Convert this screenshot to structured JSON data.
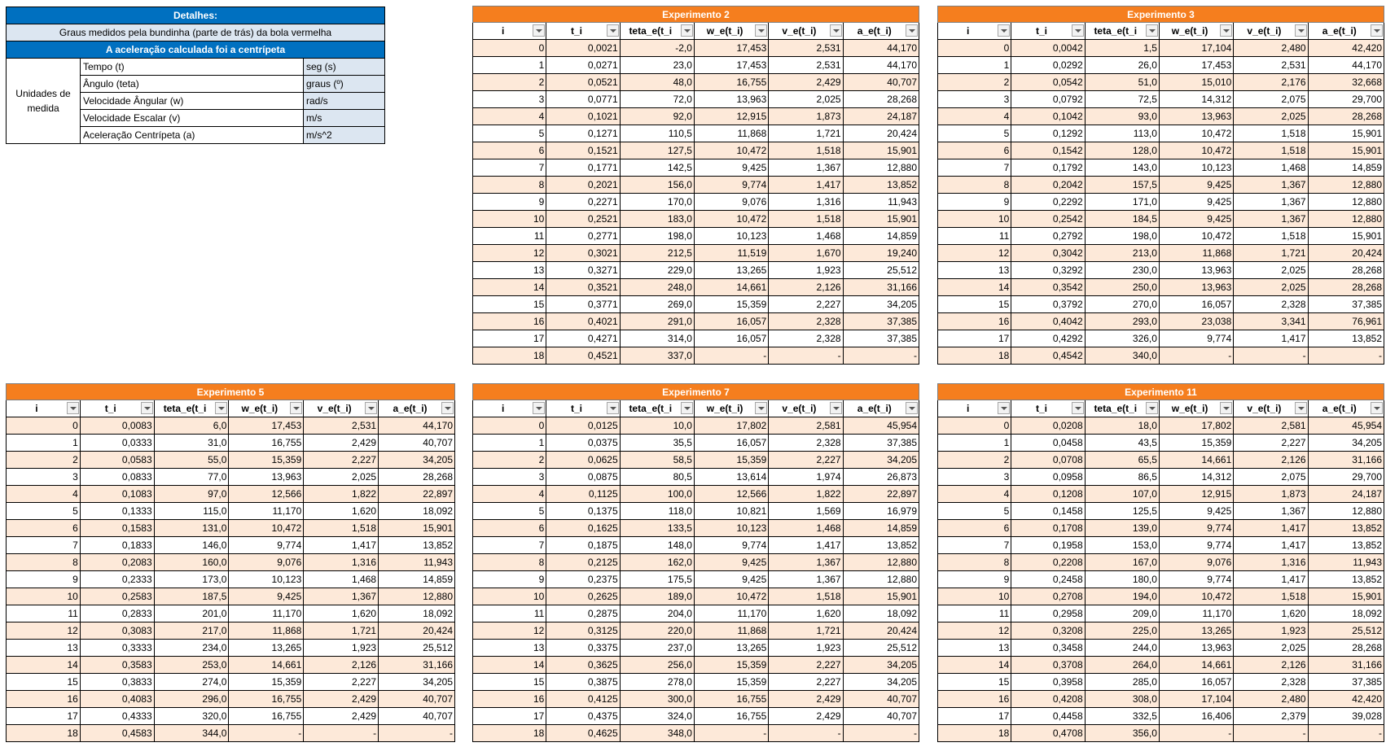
{
  "details": {
    "title": "Detalhes:",
    "note": "Graus medidos pela bundinha (parte de trás) da bola vermelha",
    "accel_note": "A aceleração calculada foi a centrípeta",
    "units_label": "Unidades de medida",
    "units": [
      {
        "name": "Tempo (t)",
        "unit": "seg (s)"
      },
      {
        "name": "Ângulo (teta)",
        "unit": "graus (º)"
      },
      {
        "name": "Velocidade Ângular (w)",
        "unit": "rad/s"
      },
      {
        "name": "Velocidade Escalar (v)",
        "unit": "m/s"
      },
      {
        "name": "Aceleração Centrípeta (a)",
        "unit": "m/s^2"
      }
    ]
  },
  "columns": [
    "i",
    "t_i",
    "teta_e(t_i",
    "w_e(t_i)",
    "v_e(t_i)",
    "a_e(t_i)"
  ],
  "experiments": [
    {
      "title": "Experimento 2",
      "rows": [
        [
          "0",
          "0,0021",
          "-2,0",
          "17,453",
          "2,531",
          "44,170"
        ],
        [
          "1",
          "0,0271",
          "23,0",
          "17,453",
          "2,531",
          "44,170"
        ],
        [
          "2",
          "0,0521",
          "48,0",
          "16,755",
          "2,429",
          "40,707"
        ],
        [
          "3",
          "0,0771",
          "72,0",
          "13,963",
          "2,025",
          "28,268"
        ],
        [
          "4",
          "0,1021",
          "92,0",
          "12,915",
          "1,873",
          "24,187"
        ],
        [
          "5",
          "0,1271",
          "110,5",
          "11,868",
          "1,721",
          "20,424"
        ],
        [
          "6",
          "0,1521",
          "127,5",
          "10,472",
          "1,518",
          "15,901"
        ],
        [
          "7",
          "0,1771",
          "142,5",
          "9,425",
          "1,367",
          "12,880"
        ],
        [
          "8",
          "0,2021",
          "156,0",
          "9,774",
          "1,417",
          "13,852"
        ],
        [
          "9",
          "0,2271",
          "170,0",
          "9,076",
          "1,316",
          "11,943"
        ],
        [
          "10",
          "0,2521",
          "183,0",
          "10,472",
          "1,518",
          "15,901"
        ],
        [
          "11",
          "0,2771",
          "198,0",
          "10,123",
          "1,468",
          "14,859"
        ],
        [
          "12",
          "0,3021",
          "212,5",
          "11,519",
          "1,670",
          "19,240"
        ],
        [
          "13",
          "0,3271",
          "229,0",
          "13,265",
          "1,923",
          "25,512"
        ],
        [
          "14",
          "0,3521",
          "248,0",
          "14,661",
          "2,126",
          "31,166"
        ],
        [
          "15",
          "0,3771",
          "269,0",
          "15,359",
          "2,227",
          "34,205"
        ],
        [
          "16",
          "0,4021",
          "291,0",
          "16,057",
          "2,328",
          "37,385"
        ],
        [
          "17",
          "0,4271",
          "314,0",
          "16,057",
          "2,328",
          "37,385"
        ],
        [
          "18",
          "0,4521",
          "337,0",
          "-",
          "-",
          "-"
        ]
      ]
    },
    {
      "title": "Experimento 3",
      "rows": [
        [
          "0",
          "0,0042",
          "1,5",
          "17,104",
          "2,480",
          "42,420"
        ],
        [
          "1",
          "0,0292",
          "26,0",
          "17,453",
          "2,531",
          "44,170"
        ],
        [
          "2",
          "0,0542",
          "51,0",
          "15,010",
          "2,176",
          "32,668"
        ],
        [
          "3",
          "0,0792",
          "72,5",
          "14,312",
          "2,075",
          "29,700"
        ],
        [
          "4",
          "0,1042",
          "93,0",
          "13,963",
          "2,025",
          "28,268"
        ],
        [
          "5",
          "0,1292",
          "113,0",
          "10,472",
          "1,518",
          "15,901"
        ],
        [
          "6",
          "0,1542",
          "128,0",
          "10,472",
          "1,518",
          "15,901"
        ],
        [
          "7",
          "0,1792",
          "143,0",
          "10,123",
          "1,468",
          "14,859"
        ],
        [
          "8",
          "0,2042",
          "157,5",
          "9,425",
          "1,367",
          "12,880"
        ],
        [
          "9",
          "0,2292",
          "171,0",
          "9,425",
          "1,367",
          "12,880"
        ],
        [
          "10",
          "0,2542",
          "184,5",
          "9,425",
          "1,367",
          "12,880"
        ],
        [
          "11",
          "0,2792",
          "198,0",
          "10,472",
          "1,518",
          "15,901"
        ],
        [
          "12",
          "0,3042",
          "213,0",
          "11,868",
          "1,721",
          "20,424"
        ],
        [
          "13",
          "0,3292",
          "230,0",
          "13,963",
          "2,025",
          "28,268"
        ],
        [
          "14",
          "0,3542",
          "250,0",
          "13,963",
          "2,025",
          "28,268"
        ],
        [
          "15",
          "0,3792",
          "270,0",
          "16,057",
          "2,328",
          "37,385"
        ],
        [
          "16",
          "0,4042",
          "293,0",
          "23,038",
          "3,341",
          "76,961"
        ],
        [
          "17",
          "0,4292",
          "326,0",
          "9,774",
          "1,417",
          "13,852"
        ],
        [
          "18",
          "0,4542",
          "340,0",
          "-",
          "-",
          "-"
        ]
      ]
    },
    {
      "title": "Experimento 5",
      "rows": [
        [
          "0",
          "0,0083",
          "6,0",
          "17,453",
          "2,531",
          "44,170"
        ],
        [
          "1",
          "0,0333",
          "31,0",
          "16,755",
          "2,429",
          "40,707"
        ],
        [
          "2",
          "0,0583",
          "55,0",
          "15,359",
          "2,227",
          "34,205"
        ],
        [
          "3",
          "0,0833",
          "77,0",
          "13,963",
          "2,025",
          "28,268"
        ],
        [
          "4",
          "0,1083",
          "97,0",
          "12,566",
          "1,822",
          "22,897"
        ],
        [
          "5",
          "0,1333",
          "115,0",
          "11,170",
          "1,620",
          "18,092"
        ],
        [
          "6",
          "0,1583",
          "131,0",
          "10,472",
          "1,518",
          "15,901"
        ],
        [
          "7",
          "0,1833",
          "146,0",
          "9,774",
          "1,417",
          "13,852"
        ],
        [
          "8",
          "0,2083",
          "160,0",
          "9,076",
          "1,316",
          "11,943"
        ],
        [
          "9",
          "0,2333",
          "173,0",
          "10,123",
          "1,468",
          "14,859"
        ],
        [
          "10",
          "0,2583",
          "187,5",
          "9,425",
          "1,367",
          "12,880"
        ],
        [
          "11",
          "0,2833",
          "201,0",
          "11,170",
          "1,620",
          "18,092"
        ],
        [
          "12",
          "0,3083",
          "217,0",
          "11,868",
          "1,721",
          "20,424"
        ],
        [
          "13",
          "0,3333",
          "234,0",
          "13,265",
          "1,923",
          "25,512"
        ],
        [
          "14",
          "0,3583",
          "253,0",
          "14,661",
          "2,126",
          "31,166"
        ],
        [
          "15",
          "0,3833",
          "274,0",
          "15,359",
          "2,227",
          "34,205"
        ],
        [
          "16",
          "0,4083",
          "296,0",
          "16,755",
          "2,429",
          "40,707"
        ],
        [
          "17",
          "0,4333",
          "320,0",
          "16,755",
          "2,429",
          "40,707"
        ],
        [
          "18",
          "0,4583",
          "344,0",
          "-",
          "-",
          "-"
        ]
      ]
    },
    {
      "title": "Experimento 7",
      "rows": [
        [
          "0",
          "0,0125",
          "10,0",
          "17,802",
          "2,581",
          "45,954"
        ],
        [
          "1",
          "0,0375",
          "35,5",
          "16,057",
          "2,328",
          "37,385"
        ],
        [
          "2",
          "0,0625",
          "58,5",
          "15,359",
          "2,227",
          "34,205"
        ],
        [
          "3",
          "0,0875",
          "80,5",
          "13,614",
          "1,974",
          "26,873"
        ],
        [
          "4",
          "0,1125",
          "100,0",
          "12,566",
          "1,822",
          "22,897"
        ],
        [
          "5",
          "0,1375",
          "118,0",
          "10,821",
          "1,569",
          "16,979"
        ],
        [
          "6",
          "0,1625",
          "133,5",
          "10,123",
          "1,468",
          "14,859"
        ],
        [
          "7",
          "0,1875",
          "148,0",
          "9,774",
          "1,417",
          "13,852"
        ],
        [
          "8",
          "0,2125",
          "162,0",
          "9,425",
          "1,367",
          "12,880"
        ],
        [
          "9",
          "0,2375",
          "175,5",
          "9,425",
          "1,367",
          "12,880"
        ],
        [
          "10",
          "0,2625",
          "189,0",
          "10,472",
          "1,518",
          "15,901"
        ],
        [
          "11",
          "0,2875",
          "204,0",
          "11,170",
          "1,620",
          "18,092"
        ],
        [
          "12",
          "0,3125",
          "220,0",
          "11,868",
          "1,721",
          "20,424"
        ],
        [
          "13",
          "0,3375",
          "237,0",
          "13,265",
          "1,923",
          "25,512"
        ],
        [
          "14",
          "0,3625",
          "256,0",
          "15,359",
          "2,227",
          "34,205"
        ],
        [
          "15",
          "0,3875",
          "278,0",
          "15,359",
          "2,227",
          "34,205"
        ],
        [
          "16",
          "0,4125",
          "300,0",
          "16,755",
          "2,429",
          "40,707"
        ],
        [
          "17",
          "0,4375",
          "324,0",
          "16,755",
          "2,429",
          "40,707"
        ],
        [
          "18",
          "0,4625",
          "348,0",
          "-",
          "-",
          "-"
        ]
      ]
    },
    {
      "title": "Experimento 11",
      "rows": [
        [
          "0",
          "0,0208",
          "18,0",
          "17,802",
          "2,581",
          "45,954"
        ],
        [
          "1",
          "0,0458",
          "43,5",
          "15,359",
          "2,227",
          "34,205"
        ],
        [
          "2",
          "0,0708",
          "65,5",
          "14,661",
          "2,126",
          "31,166"
        ],
        [
          "3",
          "0,0958",
          "86,5",
          "14,312",
          "2,075",
          "29,700"
        ],
        [
          "4",
          "0,1208",
          "107,0",
          "12,915",
          "1,873",
          "24,187"
        ],
        [
          "5",
          "0,1458",
          "125,5",
          "9,425",
          "1,367",
          "12,880"
        ],
        [
          "6",
          "0,1708",
          "139,0",
          "9,774",
          "1,417",
          "13,852"
        ],
        [
          "7",
          "0,1958",
          "153,0",
          "9,774",
          "1,417",
          "13,852"
        ],
        [
          "8",
          "0,2208",
          "167,0",
          "9,076",
          "1,316",
          "11,943"
        ],
        [
          "9",
          "0,2458",
          "180,0",
          "9,774",
          "1,417",
          "13,852"
        ],
        [
          "10",
          "0,2708",
          "194,0",
          "10,472",
          "1,518",
          "15,901"
        ],
        [
          "11",
          "0,2958",
          "209,0",
          "11,170",
          "1,620",
          "18,092"
        ],
        [
          "12",
          "0,3208",
          "225,0",
          "13,265",
          "1,923",
          "25,512"
        ],
        [
          "13",
          "0,3458",
          "244,0",
          "13,963",
          "2,025",
          "28,268"
        ],
        [
          "14",
          "0,3708",
          "264,0",
          "14,661",
          "2,126",
          "31,166"
        ],
        [
          "15",
          "0,3958",
          "285,0",
          "16,057",
          "2,328",
          "37,385"
        ],
        [
          "16",
          "0,4208",
          "308,0",
          "17,104",
          "2,480",
          "42,420"
        ],
        [
          "17",
          "0,4458",
          "332,5",
          "16,406",
          "2,379",
          "39,028"
        ],
        [
          "18",
          "0,4708",
          "356,0",
          "-",
          "-",
          "-"
        ]
      ]
    }
  ]
}
